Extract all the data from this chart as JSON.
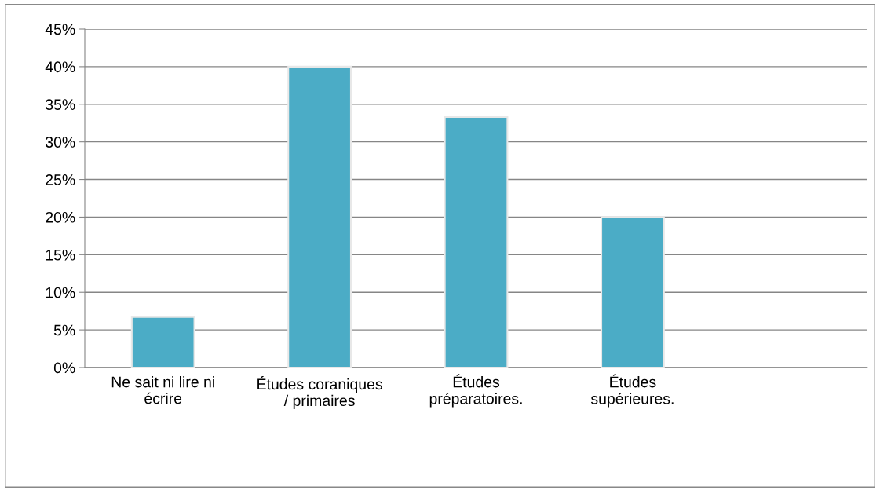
{
  "chart_data": {
    "type": "bar",
    "categories": [
      "Ne sait ni lire ni\nécrire",
      "Études coraniques\n/ primaires",
      "Études\npréparatoires.",
      "Études\nsupérieures.",
      null
    ],
    "values": [
      6.7,
      40,
      33.3,
      20,
      null
    ],
    "color": "#4bacc6",
    "ylim": [
      0,
      45
    ],
    "yticks": [
      {
        "value": 0,
        "label": "0%"
      },
      {
        "value": 5,
        "label": "5%"
      },
      {
        "value": 10,
        "label": "10%"
      },
      {
        "value": 15,
        "label": "15%"
      },
      {
        "value": 20,
        "label": "20%"
      },
      {
        "value": 25,
        "label": "25%"
      },
      {
        "value": 30,
        "label": "30%"
      },
      {
        "value": 35,
        "label": "35%"
      },
      {
        "value": 40,
        "label": "40%"
      },
      {
        "value": 45,
        "label": "45%"
      }
    ],
    "grid": "y"
  }
}
